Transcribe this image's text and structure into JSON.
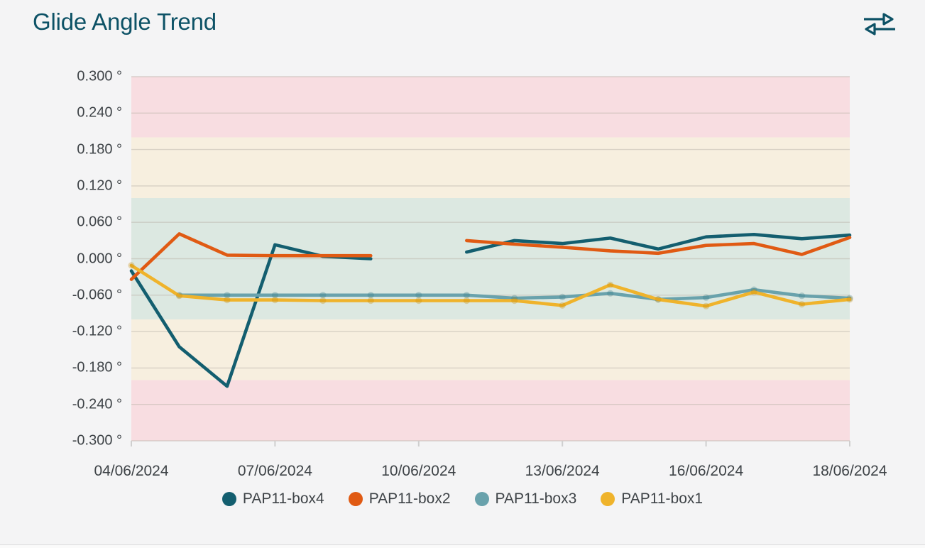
{
  "page": {
    "title": "Glide Angle Trend",
    "header_icon": "swap-horizontal-arrows"
  },
  "chart_data": {
    "type": "line",
    "title": "Glide Angle Trend",
    "y_unit": "°",
    "ylim": [
      -0.3,
      0.3
    ],
    "y_tick_values": [
      0.3,
      0.24,
      0.18,
      0.12,
      0.06,
      0.0,
      -0.06,
      -0.12,
      -0.18,
      -0.24,
      -0.3
    ],
    "y_tick_labels": [
      "0.300 °",
      "0.240 °",
      "0.180 °",
      "0.120 °",
      "0.060 °",
      "0.000 °",
      "-0.060 °",
      "-0.120 °",
      "-0.180 °",
      "-0.240 °",
      "-0.300 °"
    ],
    "num_points": 16,
    "x_tick_indices": [
      0,
      3,
      6,
      9,
      12,
      15
    ],
    "x_tick_labels": [
      "04/06/2024",
      "07/06/2024",
      "10/06/2024",
      "13/06/2024",
      "16/06/2024",
      "18/06/2024"
    ],
    "grid_on": true,
    "grid_color": "#beb7ad",
    "axis_text_color": "#3e4347",
    "background_bands": [
      {
        "from": 0.2,
        "to": 0.3,
        "color": "#f8dde1",
        "meaning": "outer-zone"
      },
      {
        "from": 0.1,
        "to": 0.2,
        "color": "#f7efdf",
        "meaning": "warning-zone"
      },
      {
        "from": -0.1,
        "to": 0.1,
        "color": "#dce8e1",
        "meaning": "ok-zone"
      },
      {
        "from": -0.2,
        "to": -0.1,
        "color": "#f7efdf",
        "meaning": "warning-zone"
      },
      {
        "from": -0.3,
        "to": -0.2,
        "color": "#f8dde1",
        "meaning": "outer-zone"
      }
    ],
    "legend_position": "bottom",
    "series": [
      {
        "name": "PAP11-box4",
        "color": "#135e6f",
        "markers": false,
        "marker_color": "#0d4a58",
        "values": [
          -0.02,
          -0.145,
          -0.21,
          0.023,
          0.004,
          0.0,
          null,
          0.011,
          0.03,
          0.025,
          0.034,
          0.016,
          0.036,
          0.04,
          0.033,
          0.039
        ]
      },
      {
        "name": "PAP11-box2",
        "color": "#e05a13",
        "markers": false,
        "marker_color": "#b34407",
        "values": [
          -0.034,
          0.041,
          0.006,
          0.005,
          0.005,
          0.005,
          null,
          0.03,
          0.024,
          0.019,
          0.013,
          0.009,
          0.022,
          0.025,
          0.007,
          0.035
        ]
      },
      {
        "name": "PAP11-box3",
        "color": "#69a2ac",
        "markers": true,
        "marker_color": "#3f7f8c",
        "values": [
          null,
          -0.06,
          -0.06,
          -0.06,
          -0.06,
          -0.06,
          -0.06,
          -0.06,
          -0.065,
          -0.063,
          -0.057,
          -0.067,
          -0.064,
          -0.051,
          -0.061,
          -0.065
        ]
      },
      {
        "name": "PAP11-box1",
        "color": "#efb32b",
        "markers": true,
        "marker_color": "#c89010",
        "values": [
          -0.011,
          -0.061,
          -0.068,
          -0.068,
          -0.069,
          -0.069,
          -0.069,
          -0.069,
          -0.069,
          -0.077,
          -0.043,
          -0.067,
          -0.078,
          -0.055,
          -0.075,
          -0.067
        ]
      }
    ]
  }
}
